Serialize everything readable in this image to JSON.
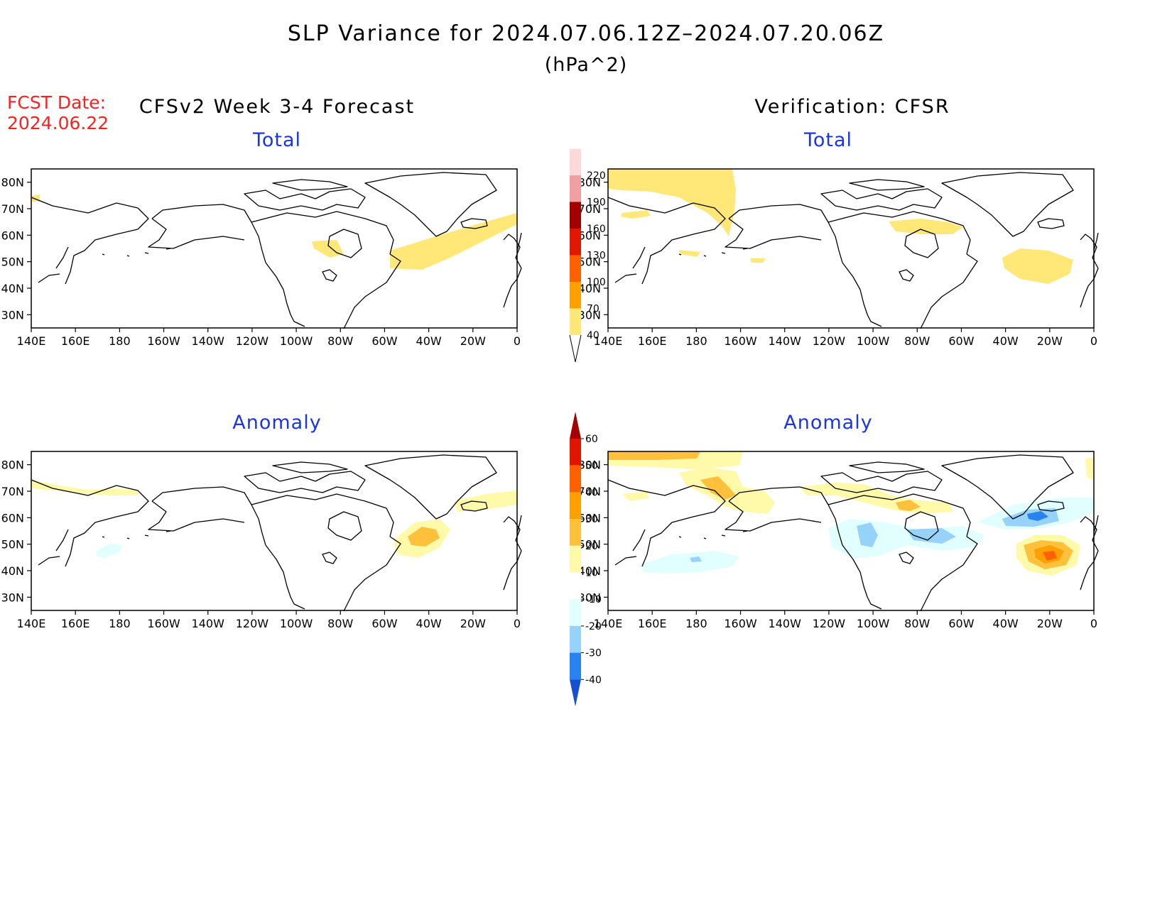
{
  "header": {
    "title": "SLP Variance for 2024.07.06.12Z–2024.07.20.06Z",
    "units": "(hPa^2)",
    "fcst_label": "FCST Date:",
    "fcst_date": "2024.06.22"
  },
  "columns": {
    "left": "CFSv2 Week 3-4 Forecast",
    "right": "Verification: CFSR"
  },
  "panels": {
    "total_title": "Total",
    "anomaly_title": "Anomaly"
  },
  "axes": {
    "lat_labels": [
      "80N",
      "70N",
      "60N",
      "50N",
      "40N",
      "30N"
    ],
    "lon_labels": [
      "140E",
      "160E",
      "180",
      "160W",
      "140W",
      "120W",
      "100W",
      "80W",
      "60W",
      "40W",
      "20W",
      "0"
    ]
  },
  "colorbars": {
    "total": {
      "levels": [
        "40",
        "70",
        "100",
        "130",
        "160",
        "190",
        "220"
      ],
      "colors": [
        "#ffe878",
        "#ffa000",
        "#ff6000",
        "#e11800",
        "#a50000",
        "#f0a0a0",
        "#ffd8d8",
        "#fff0f0"
      ]
    },
    "anomaly": {
      "levels": [
        "-40",
        "-30",
        "-20",
        "-10",
        "10",
        "20",
        "30",
        "40",
        "50",
        "60"
      ],
      "colors": [
        "#1450d2",
        "#2882f0",
        "#96d2fa",
        "#e1ffff",
        "#ffffff",
        "#fffaaa",
        "#ffc03c",
        "#ffa000",
        "#ff6000",
        "#e11400",
        "#a50000"
      ]
    }
  },
  "icons": {
    "coastline": "coastline-map",
    "colorbar-arrow": "triangle-end"
  }
}
